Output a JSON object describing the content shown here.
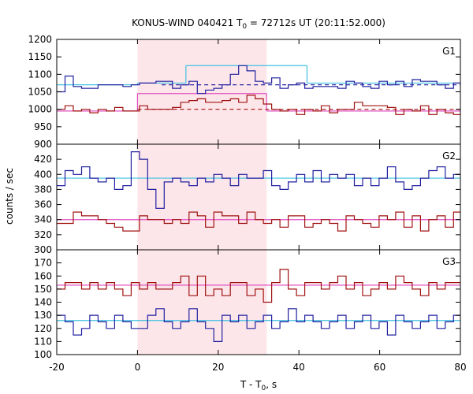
{
  "chart_data": {
    "type": "line",
    "title": {
      "prefix": "KONUS-WIND 040421 T",
      "sub": "0",
      "suffix": " = 72712s UT (20:11:52.000)"
    },
    "xlabel": {
      "prefix": "T - T",
      "sub": "0",
      "suffix": ", s"
    },
    "ylabel": "counts / sec",
    "xlim": [
      -20,
      80
    ],
    "x_ticks": [
      -20,
      0,
      20,
      40,
      60,
      80
    ],
    "shaded_interval": [
      0,
      32
    ],
    "bin_width": 2.048,
    "panels": [
      {
        "name": "G1",
        "ylim": [
          900,
          1200
        ],
        "y_ticks": [
          900,
          950,
          1000,
          1050,
          1100,
          1150,
          1200
        ],
        "series": [
          {
            "color": "#2020a0",
            "style": "step",
            "x_start": -20,
            "values": [
              1050,
              1095,
              1065,
              1060,
              1060,
              1070,
              1070,
              1070,
              1065,
              1070,
              1075,
              1075,
              1080,
              1080,
              1060,
              1070,
              1080,
              1045,
              1055,
              1060,
              1070,
              1100,
              1125,
              1110,
              1080,
              1075,
              1090,
              1060,
              1070,
              1075,
              1060,
              1065,
              1065,
              1065,
              1060,
              1080,
              1075,
              1065,
              1060,
              1080,
              1070,
              1080,
              1065,
              1085,
              1080,
              1080,
              1070,
              1060,
              1075,
              1070
            ]
          },
          {
            "color": "#a01010",
            "style": "step",
            "x_start": -20,
            "values": [
              1000,
              1010,
              995,
              1000,
              990,
              1000,
              995,
              1005,
              995,
              995,
              1010,
              1000,
              1000,
              1000,
              1005,
              1020,
              1025,
              1030,
              1020,
              1020,
              1025,
              1030,
              1020,
              1040,
              1030,
              1015,
              1000,
              995,
              1000,
              985,
              1000,
              995,
              1010,
              990,
              1000,
              1000,
              1020,
              1010,
              1010,
              1010,
              1005,
              985,
              1000,
              995,
              1010,
              985,
              1000,
              990,
              985,
              980
            ]
          }
        ],
        "levels": [
          {
            "color": "#40c0e0",
            "style": "solid",
            "segments": [
              [
                -20,
                0,
                1070
              ],
              [
                0,
                12,
                1075
              ],
              [
                12,
                42,
                1125
              ],
              [
                42,
                80,
                1075
              ]
            ]
          },
          {
            "color": "#e050c0",
            "style": "solid",
            "segments": [
              [
                -20,
                0,
                995
              ],
              [
                0,
                32,
                1045
              ],
              [
                32,
                80,
                995
              ]
            ]
          },
          {
            "color": "#2020a0",
            "style": "dashed",
            "segments": [
              [
                6,
                80,
                1070
              ]
            ]
          },
          {
            "color": "#a01010",
            "style": "dashed",
            "segments": [
              [
                0,
                80,
                1000
              ]
            ]
          }
        ]
      },
      {
        "name": "G2",
        "ylim": [
          300,
          440
        ],
        "y_ticks": [
          300,
          320,
          340,
          360,
          380,
          400,
          420
        ],
        "series": [
          {
            "color": "#2020a0",
            "style": "step",
            "x_start": -20,
            "values": [
              385,
              405,
              400,
              410,
              395,
              390,
              395,
              380,
              385,
              430,
              420,
              380,
              355,
              390,
              395,
              390,
              385,
              395,
              390,
              400,
              395,
              385,
              400,
              395,
              395,
              405,
              385,
              380,
              390,
              400,
              390,
              405,
              390,
              400,
              395,
              400,
              385,
              395,
              385,
              395,
              410,
              390,
              380,
              385,
              395,
              405,
              410,
              395,
              400,
              380
            ]
          },
          {
            "color": "#a01010",
            "style": "step",
            "x_start": -20,
            "values": [
              335,
              335,
              350,
              345,
              345,
              340,
              335,
              330,
              325,
              325,
              345,
              340,
              340,
              335,
              340,
              335,
              350,
              345,
              330,
              350,
              345,
              345,
              335,
              350,
              340,
              335,
              340,
              330,
              345,
              345,
              330,
              335,
              340,
              335,
              325,
              345,
              340,
              335,
              330,
              345,
              340,
              350,
              330,
              345,
              325,
              340,
              345,
              330,
              350,
              310
            ]
          }
        ],
        "levels": [
          {
            "color": "#40c0e0",
            "style": "solid",
            "segments": [
              [
                -20,
                80,
                395
              ]
            ]
          },
          {
            "color": "#e050c0",
            "style": "solid",
            "segments": [
              [
                -20,
                80,
                340
              ]
            ]
          }
        ]
      },
      {
        "name": "G3",
        "ylim": [
          100,
          180
        ],
        "y_ticks": [
          100,
          110,
          120,
          130,
          140,
          150,
          160,
          170
        ],
        "series": [
          {
            "color": "#a01010",
            "style": "step",
            "x_start": -20,
            "values": [
              150,
              155,
              155,
              150,
              155,
              150,
              155,
              150,
              145,
              155,
              150,
              155,
              150,
              150,
              155,
              160,
              145,
              160,
              145,
              150,
              145,
              155,
              155,
              145,
              150,
              140,
              155,
              165,
              150,
              145,
              155,
              155,
              150,
              155,
              160,
              150,
              155,
              145,
              150,
              155,
              150,
              160,
              155,
              150,
              145,
              155,
              150,
              155,
              155,
              150
            ]
          },
          {
            "color": "#2020a0",
            "style": "step",
            "x_start": -20,
            "values": [
              130,
              125,
              115,
              120,
              130,
              125,
              120,
              130,
              125,
              120,
              120,
              130,
              135,
              125,
              120,
              125,
              135,
              125,
              120,
              110,
              130,
              125,
              130,
              120,
              125,
              130,
              120,
              125,
              135,
              125,
              130,
              125,
              120,
              125,
              130,
              120,
              125,
              130,
              120,
              125,
              115,
              130,
              125,
              120,
              125,
              130,
              120,
              125,
              130,
              135
            ]
          }
        ],
        "levels": [
          {
            "color": "#40c0e0",
            "style": "solid",
            "segments": [
              [
                -20,
                80,
                126
              ]
            ]
          },
          {
            "color": "#e050c0",
            "style": "solid",
            "segments": [
              [
                -20,
                80,
                153
              ]
            ]
          }
        ]
      }
    ]
  }
}
